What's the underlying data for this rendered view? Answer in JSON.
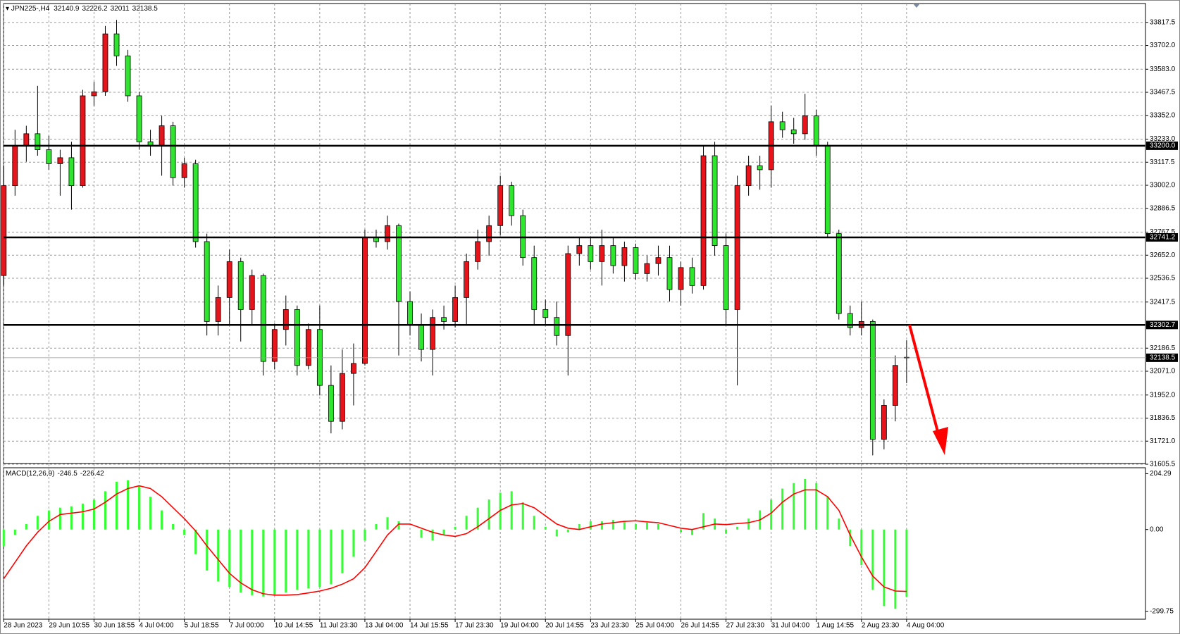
{
  "chart_data": [
    {
      "type": "candlestick",
      "symbol": "JPN225-,H4",
      "categories": [
        "28 Jun 2023",
        null,
        null,
        null,
        "29 Jun 10:55",
        null,
        null,
        null,
        "30 Jun 18:55",
        null,
        null,
        null,
        "4 Jul 04:00",
        null,
        null,
        null,
        "5 Jul 18:55",
        null,
        null,
        null,
        "7 Jul 00:00",
        null,
        null,
        null,
        "10 Jul 14:55",
        null,
        null,
        null,
        "11 Jul 23:30",
        null,
        null,
        null,
        "13 Jul 04:00",
        null,
        null,
        null,
        "14 Jul 15:55",
        null,
        null,
        null,
        "17 Jul 23:30",
        null,
        null,
        null,
        "19 Jul 04:00",
        null,
        null,
        null,
        "20 Jul 14:55",
        null,
        null,
        null,
        "23 Jul 23:30",
        null,
        null,
        null,
        "25 Jul 04:00",
        null,
        null,
        null,
        "26 Jul 14:55",
        null,
        null,
        null,
        "27 Jul 23:30",
        null,
        null,
        null,
        "31 Jul 04:00",
        null,
        null,
        null,
        "1 Aug 14:55",
        null,
        null,
        null,
        "2 Aug 23:30",
        null,
        null,
        null,
        "4 Aug 04:00"
      ],
      "ohlc": [
        [
          32550,
          33100,
          32500,
          33000
        ],
        [
          33000,
          33280,
          32950,
          33200
        ],
        [
          33200,
          33300,
          33120,
          33260
        ],
        [
          33260,
          33500,
          33150,
          33180
        ],
        [
          33180,
          33250,
          33080,
          33110
        ],
        [
          33110,
          33180,
          32950,
          33140
        ],
        [
          33140,
          33220,
          32880,
          33000
        ],
        [
          33000,
          33480,
          32990,
          33450
        ],
        [
          33450,
          33520,
          33400,
          33470
        ],
        [
          33470,
          33800,
          33450,
          33760
        ],
        [
          33760,
          33830,
          33600,
          33650
        ],
        [
          33650,
          33680,
          33420,
          33450
        ],
        [
          33450,
          33470,
          33180,
          33220
        ],
        [
          33220,
          33280,
          33150,
          33200
        ],
        [
          33200,
          33350,
          33050,
          33300
        ],
        [
          33300,
          33320,
          33000,
          33040
        ],
        [
          33040,
          33140,
          32990,
          33110
        ],
        [
          33110,
          33130,
          32690,
          32720
        ],
        [
          32720,
          32760,
          32250,
          32320
        ],
        [
          32320,
          32500,
          32250,
          32440
        ],
        [
          32440,
          32680,
          32300,
          32620
        ],
        [
          32620,
          32640,
          32220,
          32380
        ],
        [
          32380,
          32580,
          32300,
          32550
        ],
        [
          32550,
          32560,
          32050,
          32120
        ],
        [
          32120,
          32310,
          32080,
          32280
        ],
        [
          32280,
          32450,
          32200,
          32380
        ],
        [
          32380,
          32400,
          32050,
          32100
        ],
        [
          32100,
          32310,
          32080,
          32280
        ],
        [
          32280,
          32400,
          31950,
          32000
        ],
        [
          32000,
          32100,
          31760,
          31820
        ],
        [
          31820,
          32180,
          31780,
          32060
        ],
        [
          32060,
          32210,
          31900,
          32110
        ],
        [
          32110,
          32780,
          32100,
          32740
        ],
        [
          32740,
          32780,
          32690,
          32720
        ],
        [
          32720,
          32850,
          32680,
          32800
        ],
        [
          32800,
          32810,
          32150,
          32420
        ],
        [
          32420,
          32470,
          32250,
          32300
        ],
        [
          32300,
          32360,
          32120,
          32180
        ],
        [
          32180,
          32380,
          32050,
          32340
        ],
        [
          32340,
          32400,
          32280,
          32320
        ],
        [
          32320,
          32500,
          32290,
          32440
        ],
        [
          32440,
          32660,
          32300,
          32620
        ],
        [
          32620,
          32780,
          32580,
          32720
        ],
        [
          32720,
          32850,
          32650,
          32800
        ],
        [
          32800,
          33050,
          32750,
          33000
        ],
        [
          33000,
          33020,
          32800,
          32850
        ],
        [
          32850,
          32880,
          32600,
          32640
        ],
        [
          32640,
          32700,
          32300,
          32380
        ],
        [
          32380,
          32430,
          32300,
          32340
        ],
        [
          32340,
          32420,
          32200,
          32250
        ],
        [
          32250,
          32700,
          32050,
          32660
        ],
        [
          32660,
          32740,
          32600,
          32700
        ],
        [
          32700,
          32740,
          32580,
          32620
        ],
        [
          32620,
          32780,
          32500,
          32700
        ],
        [
          32700,
          32740,
          32560,
          32600
        ],
        [
          32600,
          32720,
          32520,
          32690
        ],
        [
          32690,
          32710,
          32530,
          32560
        ],
        [
          32560,
          32650,
          32520,
          32610
        ],
        [
          32610,
          32700,
          32550,
          32640
        ],
        [
          32640,
          32700,
          32420,
          32480
        ],
        [
          32480,
          32620,
          32400,
          32590
        ],
        [
          32590,
          32640,
          32460,
          32500
        ],
        [
          32500,
          33200,
          32480,
          33150
        ],
        [
          33150,
          33220,
          32650,
          32700
        ],
        [
          32700,
          32760,
          32300,
          32380
        ],
        [
          32380,
          33050,
          32000,
          33000
        ],
        [
          33000,
          33150,
          32950,
          33100
        ],
        [
          33100,
          33150,
          32980,
          33080
        ],
        [
          33080,
          33400,
          32990,
          33320
        ],
        [
          33320,
          33370,
          33240,
          33280
        ],
        [
          33280,
          33340,
          33210,
          33260
        ],
        [
          33260,
          33460,
          33230,
          33350
        ],
        [
          33350,
          33380,
          33150,
          33200
        ],
        [
          33200,
          33220,
          32740,
          32760
        ],
        [
          32760,
          32780,
          32330,
          32360
        ],
        [
          32360,
          32400,
          32250,
          32290
        ],
        [
          32290,
          32420,
          32250,
          32320
        ],
        [
          32320,
          32330,
          31650,
          31730
        ],
        [
          31730,
          31930,
          31680,
          31900
        ],
        [
          31900,
          32150,
          31820,
          32100
        ],
        [
          32140.9,
          32226.2,
          32011.0,
          32138.5
        ]
      ],
      "up_color": "#e8141c",
      "down_color": "#2ee62e",
      "ylim": [
        31609,
        33912
      ],
      "yticks": [
        33817.5,
        {
          "value": 33702.0,
          "label": "33702.0"
        },
        {
          "value": 33583.0,
          "label": "33583.0"
        },
        33467.5,
        {
          "value": 33352.0,
          "label": "33352.0"
        },
        {
          "value": 33233.0,
          "label": "33233.0"
        },
        33117.5,
        {
          "value": 33002.0,
          "label": "33002.0"
        },
        32886.5,
        32767.5,
        {
          "value": 32652.0,
          "label": "32652.0"
        },
        32536.5,
        32417.5,
        32186.5,
        {
          "value": 32071.0,
          "label": "32071.0"
        },
        {
          "value": 31952.0,
          "label": "31952.0"
        },
        31836.5,
        {
          "value": 31721.0,
          "label": "31721.0"
        },
        31605.5
      ],
      "levels": [
        {
          "value": 33200.0,
          "label": "33200.0"
        },
        {
          "value": 32741.2,
          "label": "32741.2"
        },
        {
          "value": 32302.7,
          "label": "32302.7"
        }
      ],
      "grid": true
    },
    {
      "type": "macd",
      "name": "MACD(12,26,9)",
      "histogram": {
        "color": "#33ff33",
        "values": [
          -60,
          -20,
          20,
          50,
          70,
          80,
          85,
          95,
          110,
          140,
          175,
          180,
          160,
          120,
          70,
          20,
          -20,
          -90,
          -150,
          -190,
          -210,
          -230,
          -240,
          -245,
          -240,
          -230,
          -220,
          -215,
          -210,
          -200,
          -160,
          -100,
          -40,
          20,
          45,
          30,
          0,
          -30,
          -40,
          -20,
          10,
          50,
          80,
          110,
          135,
          140,
          100,
          50,
          10,
          -25,
          -10,
          20,
          30,
          30,
          35,
          30,
          20,
          25,
          20,
          0,
          -10,
          -20,
          60,
          40,
          -15,
          10,
          40,
          70,
          110,
          150,
          170,
          185,
          170,
          120,
          40,
          -60,
          -130,
          -220,
          -280,
          -290,
          -246.5
        ]
      },
      "signal": {
        "color": "#ff0000",
        "values": [
          -180,
          -120,
          -60,
          -10,
          30,
          55,
          60,
          65,
          75,
          100,
          130,
          150,
          160,
          150,
          120,
          80,
          40,
          -5,
          -60,
          -110,
          -160,
          -195,
          -220,
          -235,
          -240,
          -240,
          -238,
          -232,
          -225,
          -215,
          -200,
          -180,
          -140,
          -80,
          -20,
          20,
          20,
          5,
          -10,
          -20,
          -25,
          -15,
          10,
          40,
          70,
          90,
          95,
          80,
          50,
          20,
          5,
          0,
          10,
          20,
          25,
          30,
          32,
          28,
          25,
          15,
          5,
          0,
          10,
          20,
          18,
          22,
          25,
          35,
          60,
          100,
          130,
          145,
          145,
          120,
          70,
          -20,
          -100,
          -170,
          -210,
          -225,
          -226.42
        ]
      },
      "ylim": [
        -328,
        226
      ],
      "yticks": [
        204.29,
        {
          "value": 0,
          "label": "0.00"
        },
        -299.75
      ]
    }
  ]
}
